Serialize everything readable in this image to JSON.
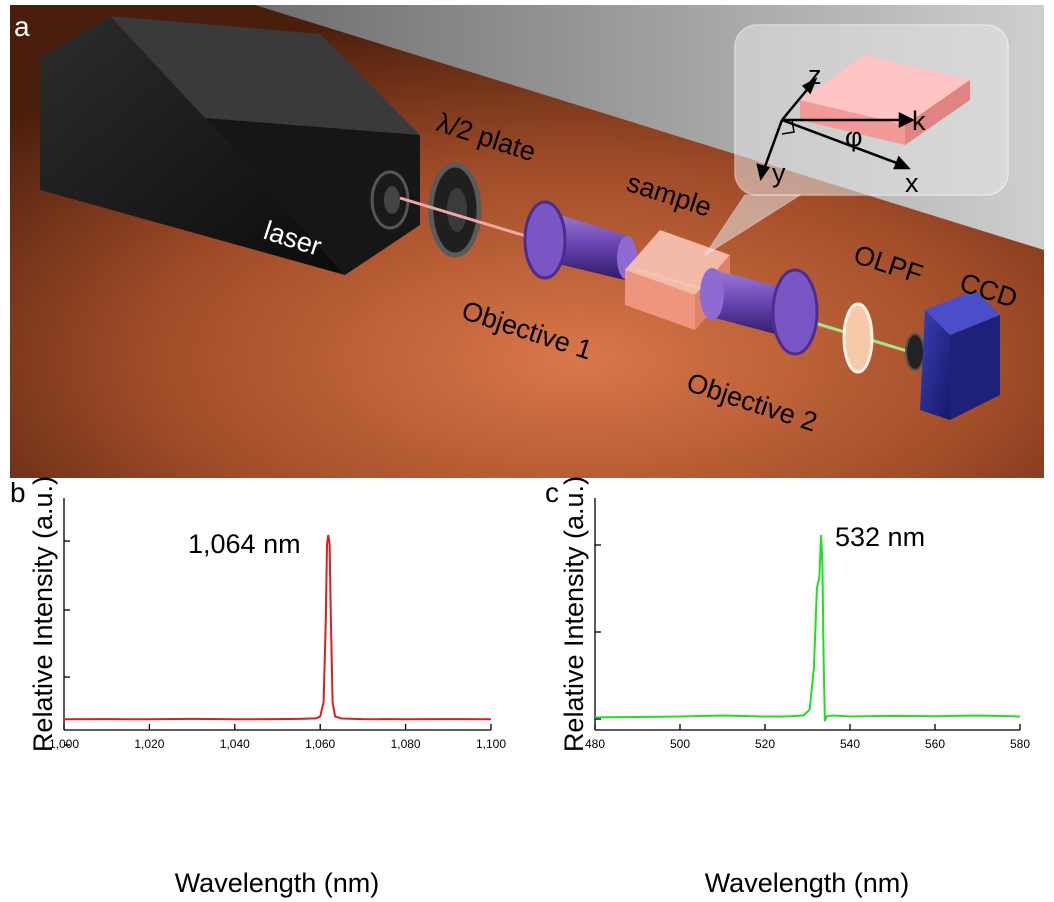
{
  "panel_a": {
    "letter": "a",
    "labels": {
      "laser": "laser",
      "half_wave_plate": "λ/2 plate",
      "sample": "sample",
      "objective1": "Objective 1",
      "objective2": "Objective 2",
      "olpf": "OLPF",
      "ccd": "CCD"
    },
    "inset_axes": {
      "z": "z",
      "k": "k",
      "phi": "φ",
      "y": "y",
      "x": "x"
    }
  },
  "chart_data": [
    {
      "type": "line",
      "panel": "b",
      "xlabel": "Wavelength (nm)",
      "ylabel": "Relative Intensity (a.u.)",
      "xlim": [
        1000,
        1100
      ],
      "xticks": [
        "1,000",
        "1,020",
        "1,040",
        "1,060",
        "1,080",
        "1,100"
      ],
      "annotation": "1,064 nm",
      "line_color": "#d62020",
      "series": [
        {
          "x": [
            1000,
            1010,
            1020,
            1030,
            1040,
            1050,
            1055,
            1059,
            1060,
            1060.8,
            1061.3,
            1061.6,
            1061.9,
            1062.2,
            1062.5,
            1062.9,
            1063.5,
            1065,
            1070,
            1080,
            1090,
            1100
          ],
          "y": [
            0.03,
            0.031,
            0.03,
            0.032,
            0.03,
            0.031,
            0.032,
            0.035,
            0.045,
            0.12,
            0.55,
            0.95,
            1.0,
            0.95,
            0.55,
            0.12,
            0.045,
            0.034,
            0.031,
            0.03,
            0.031,
            0.03
          ]
        }
      ]
    },
    {
      "type": "line",
      "panel": "c",
      "xlabel": "Wavelength (nm)",
      "ylabel": "Relative Intensity (a.u.)",
      "xlim": [
        480,
        580
      ],
      "xticks": [
        "480",
        "500",
        "520",
        "540",
        "560",
        "580"
      ],
      "annotation": "532 nm",
      "line_color": "#22dd22",
      "series": [
        {
          "x": [
            480,
            490,
            500,
            510,
            520,
            525,
            529,
            530.5,
            531.5,
            532.2,
            532.8,
            533.2,
            533.5,
            533.8,
            534.1,
            534.5,
            536,
            540,
            550,
            560,
            570,
            580
          ],
          "y": [
            0.04,
            0.042,
            0.045,
            0.05,
            0.045,
            0.045,
            0.05,
            0.08,
            0.3,
            0.72,
            0.78,
            1.0,
            0.85,
            0.35,
            0.02,
            0.045,
            0.05,
            0.045,
            0.048,
            0.046,
            0.05,
            0.045
          ]
        }
      ]
    }
  ]
}
